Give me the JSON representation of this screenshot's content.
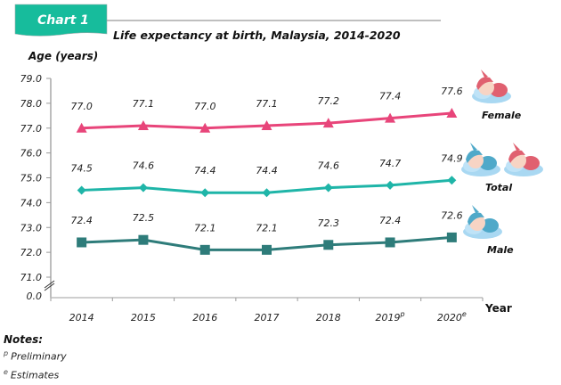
{
  "banner": {
    "label": "Chart 1",
    "color": "#17BC9C"
  },
  "chart_data": {
    "type": "line",
    "title": "Life expectancy at birth, Malaysia, 2014-2020",
    "ylabel": "Age (years)",
    "xlabel": "Year",
    "categories": [
      "2014",
      "2015",
      "2016",
      "2017",
      "2018",
      "2019",
      "2020"
    ],
    "category_superscripts": [
      "",
      "",
      "",
      "",
      "",
      "p",
      "e"
    ],
    "ylim": [
      71.0,
      79.0
    ],
    "yticks": [
      "79.0",
      "78.0",
      "77.0",
      "76.0",
      "75.0",
      "74.0",
      "73.0",
      "72.0",
      "71.0"
    ],
    "y_break": true,
    "y_origin_label": "0.0",
    "grid": false,
    "series": [
      {
        "name": "Female",
        "color": "#E8457A",
        "marker": "triangle",
        "values": [
          77.0,
          77.1,
          77.0,
          77.1,
          77.2,
          77.4,
          77.6
        ],
        "labels": [
          "77.0",
          "77.1",
          "77.0",
          "77.1",
          "77.2",
          "77.4",
          "77.6"
        ],
        "icon": "baby-girl-icon"
      },
      {
        "name": "Total",
        "color": "#1FB5A8",
        "marker": "diamond",
        "values": [
          74.5,
          74.6,
          74.4,
          74.4,
          74.6,
          74.7,
          74.9
        ],
        "labels": [
          "74.5",
          "74.6",
          "74.4",
          "74.4",
          "74.6",
          "74.7",
          "74.9"
        ],
        "icon": "babies-icon"
      },
      {
        "name": "Male",
        "color": "#2E7C7A",
        "marker": "square",
        "values": [
          72.4,
          72.5,
          72.1,
          72.1,
          72.3,
          72.4,
          72.6
        ],
        "labels": [
          "72.4",
          "72.5",
          "72.1",
          "72.1",
          "72.3",
          "72.4",
          "72.6"
        ],
        "icon": "baby-boy-icon"
      }
    ],
    "legend": "right-of-lines"
  },
  "notes": {
    "title": "Notes:",
    "items": [
      {
        "mark": "p",
        "text": "Preliminary"
      },
      {
        "mark": "e",
        "text": "Estimates"
      }
    ]
  }
}
